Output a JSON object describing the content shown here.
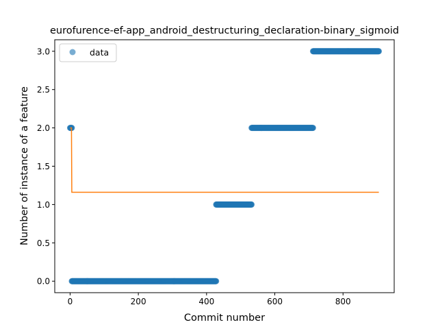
{
  "chart_data": {
    "type": "scatter",
    "title": "eurofurence-ef-app_android_destructuring_declaration-binary_sigmoid",
    "xlabel": "Commit number",
    "ylabel": "Number of instance of a feature",
    "xlim": [
      -45,
      950
    ],
    "ylim": [
      -0.15,
      3.15
    ],
    "xticks": [
      "0",
      "200",
      "400",
      "600",
      "800"
    ],
    "yticks": [
      "0.0",
      "0.5",
      "1.0",
      "1.5",
      "2.0",
      "2.5",
      "3.0"
    ],
    "xtick_values": [
      0,
      200,
      400,
      600,
      800
    ],
    "ytick_values": [
      0.0,
      0.5,
      1.0,
      1.5,
      2.0,
      2.5,
      3.0
    ],
    "grid": false,
    "legend_position": "top-left",
    "series": [
      {
        "name": "data",
        "kind": "scatter",
        "color": "#1f77b4",
        "alpha": 0.6,
        "segments": [
          {
            "x_start": 0,
            "x_end": 5,
            "y": 2.0
          },
          {
            "x_start": 5,
            "x_end": 428,
            "y": 0.0
          },
          {
            "x_start": 428,
            "x_end": 532,
            "y": 1.0
          },
          {
            "x_start": 532,
            "x_end": 712,
            "y": 2.0
          },
          {
            "x_start": 712,
            "x_end": 905,
            "y": 3.0
          }
        ]
      },
      {
        "kind": "line",
        "color": "#ff7f0e",
        "x": [
          0,
          4,
          5,
          905
        ],
        "y": [
          2.0,
          2.0,
          1.16,
          1.16
        ]
      }
    ]
  }
}
